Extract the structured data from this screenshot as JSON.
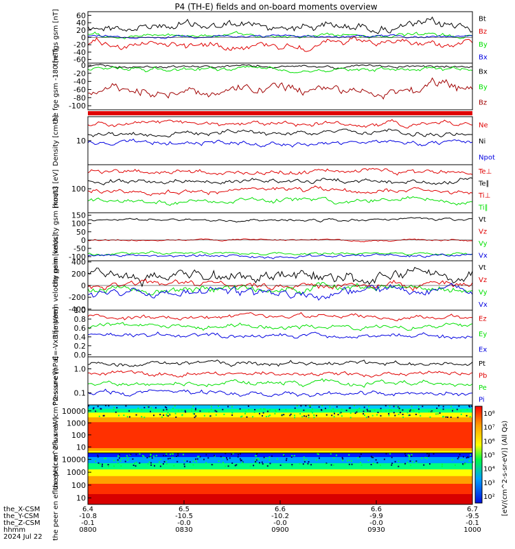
{
  "title": "P4 (TH-E) fields and on-board moments overview",
  "colors": {
    "black": "#000000",
    "red": "#e00000",
    "green": "#00e000",
    "blue": "#0000e0",
    "darkred": "#a00000",
    "frame": "#000000"
  },
  "colorbar": {
    "label": "[eV/(cm^2-s-sr-eV)] (All Qs)",
    "ticks": [
      "10⁸",
      "10⁷",
      "10⁶",
      "10⁵",
      "10⁴",
      "10³",
      "10²"
    ]
  },
  "footer": {
    "rows": [
      {
        "name": "the_X-CSM",
        "values": [
          "6.4",
          "6.5",
          "6.6",
          "6.6",
          "6.7"
        ]
      },
      {
        "name": "the_Y-CSM",
        "values": [
          "-10.8",
          "-10.5",
          "-10.2",
          "-9.9",
          "-9.5"
        ]
      },
      {
        "name": "the_Z-CSM",
        "values": [
          "-0.1",
          "-0.0",
          "-0.0",
          "-0.0",
          "-0.1"
        ]
      },
      {
        "name": "hhmm",
        "values": [
          "0800",
          "0830",
          "0900",
          "0930",
          "1000"
        ]
      }
    ],
    "date": "2024 Jul 22"
  },
  "chart_data": [
    {
      "type": "line",
      "ylabel": "the fgs gsm [nT]",
      "yticks": [
        "60",
        "40",
        "20",
        "0",
        "-20",
        "-40",
        "-60"
      ],
      "ylim": [
        -70,
        70
      ],
      "series": [
        {
          "name": "Bt",
          "color": "#000000",
          "base": 30,
          "amp": 15
        },
        {
          "name": "Bz",
          "color": "#e00000",
          "base": -18,
          "amp": 12
        },
        {
          "name": "By",
          "color": "#00e000",
          "base": 5,
          "amp": 6
        },
        {
          "name": "Bx",
          "color": "#0000e0",
          "base": 3,
          "amp": 4
        }
      ]
    },
    {
      "type": "line",
      "ylabel": "the fge gsm -180 [nT]",
      "yticks": [
        "0",
        "-20",
        "-40",
        "-60",
        "-80",
        "-100"
      ],
      "ylim": [
        -110,
        5
      ],
      "series": [
        {
          "name": "Bx",
          "color": "#000000",
          "base": -4,
          "amp": 4
        },
        {
          "name": "By",
          "color": "#00e000",
          "base": -8,
          "amp": 6
        },
        {
          "name": "Bz",
          "color": "#a00000",
          "base": -62,
          "amp": 15
        }
      ]
    },
    {
      "type": "line",
      "ylabel": "Density [cm-3]",
      "yticks": [
        "10"
      ],
      "series": [
        {
          "name": "Ne",
          "color": "#e00000"
        },
        {
          "name": "Ni",
          "color": "#000000"
        },
        {
          "name": "Npot",
          "color": "#0000e0"
        }
      ]
    },
    {
      "type": "line",
      "ylabel": "moat3 [eV]",
      "yticks": [
        "100"
      ],
      "series": [
        {
          "name": "Te⊥",
          "color": "#e00000"
        },
        {
          "name": "Te∥",
          "color": "#000000"
        },
        {
          "name": "Ti⊥",
          "color": "#e00000"
        },
        {
          "name": "Ti∥",
          "color": "#00e000"
        }
      ]
    },
    {
      "type": "line",
      "ylabel": "the peim velocity gsm [km/s]",
      "yticks": [
        "150",
        "100",
        "50",
        "0",
        "-50",
        "-100"
      ],
      "ylim": [
        -125,
        165
      ],
      "series": [
        {
          "name": "Vt",
          "color": "#000000",
          "base": 120,
          "amp": 10
        },
        {
          "name": "Vz",
          "color": "#e00000",
          "base": 0,
          "amp": 6
        },
        {
          "name": "Vy",
          "color": "#00e000",
          "base": -80,
          "amp": 10
        },
        {
          "name": "Vx",
          "color": "#0000e0",
          "base": -95,
          "amp": 10
        }
      ]
    },
    {
      "type": "line",
      "ylabel": "the peem velocity gsm [km/s]",
      "yticks": [
        "400",
        "200",
        "0",
        "-200",
        "-400"
      ],
      "ylim": [
        -420,
        420
      ],
      "series": [
        {
          "name": "Vt",
          "color": "#000000",
          "base": 160,
          "amp": 120
        },
        {
          "name": "Vz",
          "color": "#e00000",
          "base": 0,
          "amp": 60
        },
        {
          "name": "Vy",
          "color": "#00e000",
          "base": -60,
          "amp": 70
        },
        {
          "name": "Vx",
          "color": "#0000e0",
          "base": -110,
          "amp": 90
        }
      ]
    },
    {
      "type": "line",
      "ylabel": "E=-VxB [mV/m]",
      "yticks": [
        "1.0",
        "0.8",
        "0.6",
        "0.4",
        "0.2",
        "0.0"
      ],
      "ylim": [
        -0.05,
        1.0
      ],
      "series": [
        {
          "name": "Ez",
          "color": "#e00000"
        },
        {
          "name": "Ey",
          "color": "#00e000"
        },
        {
          "name": "Ex",
          "color": "#0000e0"
        }
      ]
    },
    {
      "type": "line",
      "ylabel": "Pressure [nPa]",
      "yticks": [
        "1.0",
        "0.1"
      ],
      "series": [
        {
          "name": "Pt",
          "color": "#000000"
        },
        {
          "name": "Pb",
          "color": "#e00000"
        },
        {
          "name": "Pe",
          "color": "#00e000"
        },
        {
          "name": "Pi",
          "color": "#0000e0"
        }
      ]
    },
    {
      "type": "heatmap",
      "ylabel": "the peir en eflux eV (cm^2-s-sr-eV)",
      "yticks": [
        "10000",
        "1000",
        "100",
        "10"
      ]
    },
    {
      "type": "heatmap",
      "ylabel": "the peer en eflux eV (cm^2-s-sr-eV)",
      "yticks": [
        "10000",
        "1000",
        "100",
        "10"
      ]
    }
  ]
}
